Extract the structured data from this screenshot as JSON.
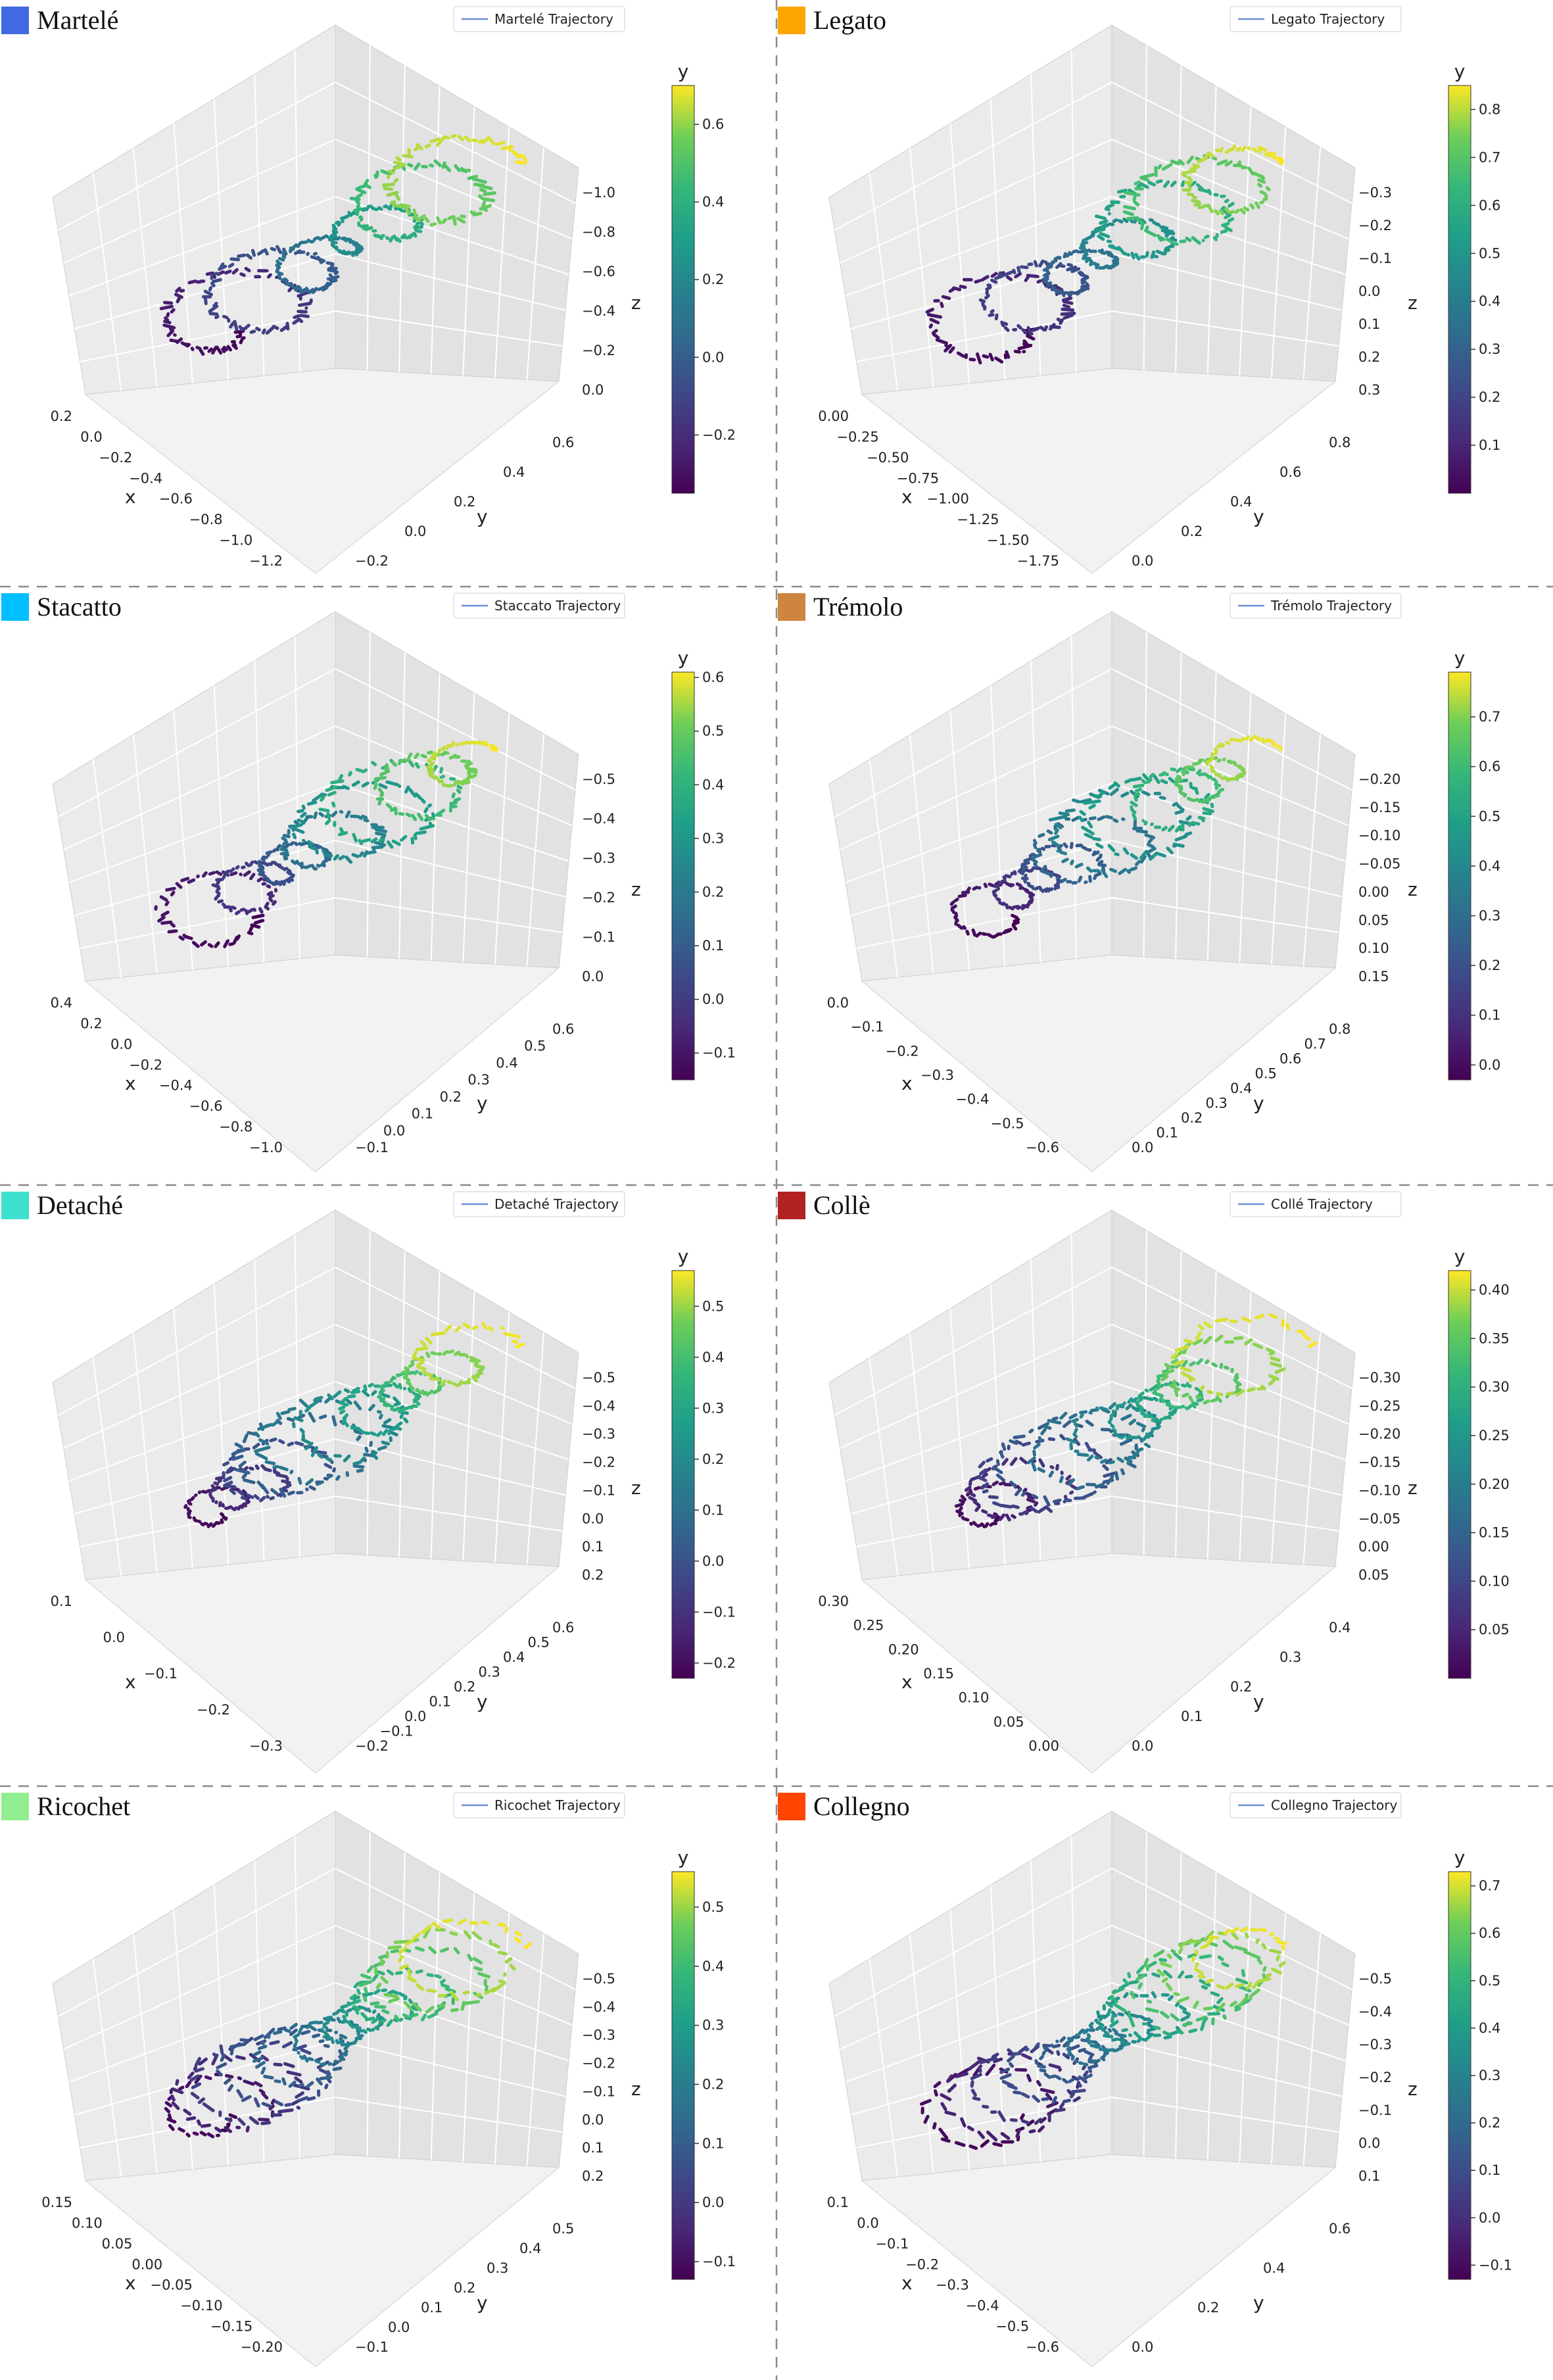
{
  "figure": {
    "panels": [
      {
        "key": "martele",
        "title": "Martelé",
        "badge_color": "#4169E1",
        "legend": "Martelé Trajectory"
      },
      {
        "key": "legato",
        "title": "Legato",
        "badge_color": "#FFA500",
        "legend": "Legato Trajectory"
      },
      {
        "key": "stacatto",
        "title": "Stacatto",
        "badge_color": "#00BFFF",
        "legend": "Staccato Trajectory"
      },
      {
        "key": "tremolo",
        "title": "Trémolo",
        "badge_color": "#CD853F",
        "legend": "Trémolo Trajectory"
      },
      {
        "key": "detache",
        "title": "Detaché",
        "badge_color": "#40E0D0",
        "legend": "Detaché Trajectory"
      },
      {
        "key": "colle",
        "title": "Collè",
        "badge_color": "#B22222",
        "legend": "Collé Trajectory"
      },
      {
        "key": "ricochet",
        "title": "Ricochet",
        "badge_color": "#90EE90",
        "legend": "Ricochet Trajectory"
      },
      {
        "key": "collegno",
        "title": "Collegno",
        "badge_color": "#FF4500",
        "legend": "Collegno Trajectory"
      }
    ]
  },
  "chart_data": [
    {
      "type": "line3d",
      "title": "Martelé",
      "series": [
        {
          "name": "Martelé Trajectory"
        }
      ],
      "xlabel": "x",
      "ylabel": "y",
      "zlabel": "z",
      "colorbar_label": "y",
      "colormap": "viridis",
      "x_ticks": [
        "0.2",
        "0.0",
        "−0.2",
        "−0.4",
        "−0.6",
        "−0.8",
        "−1.0",
        "−1.2"
      ],
      "y_ticks": [
        "−0.2",
        "0.0",
        "0.2",
        "0.4",
        "0.6"
      ],
      "z_ticks": [
        "−1.0",
        "−0.8",
        "−0.6",
        "−0.4",
        "−0.2",
        "0.0"
      ],
      "colorbar_ticks": [
        "0.6",
        "0.4",
        "0.2",
        "0.0",
        "−0.2"
      ],
      "colorbar_range": [
        -0.35,
        0.7
      ]
    },
    {
      "type": "line3d",
      "title": "Legato",
      "series": [
        {
          "name": "Legato Trajectory"
        }
      ],
      "xlabel": "x",
      "ylabel": "y",
      "zlabel": "z",
      "colorbar_label": "y",
      "colormap": "viridis",
      "x_ticks": [
        "0.00",
        "−0.25",
        "−0.50",
        "−0.75",
        "−1.00",
        "−1.25",
        "−1.50",
        "−1.75"
      ],
      "y_ticks": [
        "0.0",
        "0.2",
        "0.4",
        "0.6",
        "0.8"
      ],
      "z_ticks": [
        "−0.3",
        "−0.2",
        "−0.1",
        "0.0",
        "0.1",
        "0.2",
        "0.3"
      ],
      "colorbar_ticks": [
        "0.8",
        "0.7",
        "0.6",
        "0.5",
        "0.4",
        "0.3",
        "0.2",
        "0.1"
      ],
      "colorbar_range": [
        0.0,
        0.85
      ]
    },
    {
      "type": "line3d",
      "title": "Stacatto",
      "series": [
        {
          "name": "Staccato Trajectory"
        }
      ],
      "xlabel": "x",
      "ylabel": "y",
      "zlabel": "z",
      "colorbar_label": "y",
      "colormap": "viridis",
      "x_ticks": [
        "0.4",
        "0.2",
        "0.0",
        "−0.2",
        "−0.4",
        "−0.6",
        "−0.8",
        "−1.0"
      ],
      "y_ticks": [
        "−0.1",
        "0.0",
        "0.1",
        "0.2",
        "0.3",
        "0.4",
        "0.5",
        "0.6"
      ],
      "z_ticks": [
        "−0.5",
        "−0.4",
        "−0.3",
        "−0.2",
        "−0.1",
        "0.0"
      ],
      "colorbar_ticks": [
        "0.6",
        "0.5",
        "0.4",
        "0.3",
        "0.2",
        "0.1",
        "0.0",
        "−0.1"
      ],
      "colorbar_range": [
        -0.15,
        0.61
      ]
    },
    {
      "type": "line3d",
      "title": "Trémolo",
      "series": [
        {
          "name": "Trémolo Trajectory"
        }
      ],
      "xlabel": "x",
      "ylabel": "y",
      "zlabel": "z",
      "colorbar_label": "y",
      "colormap": "viridis",
      "x_ticks": [
        "0.0",
        "−0.1",
        "−0.2",
        "−0.3",
        "−0.4",
        "−0.5",
        "−0.6"
      ],
      "y_ticks": [
        "0.0",
        "0.1",
        "0.2",
        "0.3",
        "0.4",
        "0.5",
        "0.6",
        "0.7",
        "0.8"
      ],
      "z_ticks": [
        "−0.20",
        "−0.15",
        "−0.10",
        "−0.05",
        "0.00",
        "0.05",
        "0.10",
        "0.15"
      ],
      "colorbar_ticks": [
        "0.7",
        "0.6",
        "0.5",
        "0.4",
        "0.3",
        "0.2",
        "0.1",
        "0.0"
      ],
      "colorbar_range": [
        -0.03,
        0.79
      ]
    },
    {
      "type": "line3d",
      "title": "Detaché",
      "series": [
        {
          "name": "Detaché Trajectory"
        }
      ],
      "xlabel": "x",
      "ylabel": "y",
      "zlabel": "z",
      "colorbar_label": "y",
      "colormap": "viridis",
      "x_ticks": [
        "0.1",
        "0.0",
        "−0.1",
        "−0.2",
        "−0.3"
      ],
      "y_ticks": [
        "−0.2",
        "−0.1",
        "0.0",
        "0.1",
        "0.2",
        "0.3",
        "0.4",
        "0.5",
        "0.6"
      ],
      "z_ticks": [
        "−0.5",
        "−0.4",
        "−0.3",
        "−0.2",
        "−0.1",
        "0.0",
        "0.1",
        "0.2"
      ],
      "colorbar_ticks": [
        "0.5",
        "0.4",
        "0.3",
        "0.2",
        "0.1",
        "0.0",
        "−0.1",
        "−0.2"
      ],
      "colorbar_range": [
        -0.23,
        0.57
      ]
    },
    {
      "type": "line3d",
      "title": "Collè",
      "series": [
        {
          "name": "Collé Trajectory"
        }
      ],
      "xlabel": "x",
      "ylabel": "y",
      "zlabel": "z",
      "colorbar_label": "y",
      "colormap": "viridis",
      "x_ticks": [
        "0.30",
        "0.25",
        "0.20",
        "0.15",
        "0.10",
        "0.05",
        "0.00"
      ],
      "y_ticks": [
        "0.0",
        "0.1",
        "0.2",
        "0.3",
        "0.4"
      ],
      "z_ticks": [
        "−0.30",
        "−0.25",
        "−0.20",
        "−0.15",
        "−0.10",
        "−0.05",
        "0.00",
        "0.05"
      ],
      "colorbar_ticks": [
        "0.40",
        "0.35",
        "0.30",
        "0.25",
        "0.20",
        "0.15",
        "0.10",
        "0.05"
      ],
      "colorbar_range": [
        0.0,
        0.42
      ]
    },
    {
      "type": "line3d",
      "title": "Ricochet",
      "series": [
        {
          "name": "Ricochet Trajectory"
        }
      ],
      "xlabel": "x",
      "ylabel": "y",
      "zlabel": "z",
      "colorbar_label": "y",
      "colormap": "viridis",
      "x_ticks": [
        "0.15",
        "0.10",
        "0.05",
        "0.00",
        "−0.05",
        "−0.10",
        "−0.15",
        "−0.20"
      ],
      "y_ticks": [
        "−0.1",
        "0.0",
        "0.1",
        "0.2",
        "0.3",
        "0.4",
        "0.5"
      ],
      "z_ticks": [
        "−0.5",
        "−0.4",
        "−0.3",
        "−0.2",
        "−0.1",
        "0.0",
        "0.1",
        "0.2"
      ],
      "colorbar_ticks": [
        "0.5",
        "0.4",
        "0.3",
        "0.2",
        "0.1",
        "0.0",
        "−0.1"
      ],
      "colorbar_range": [
        -0.13,
        0.56
      ]
    },
    {
      "type": "line3d",
      "title": "Collegno",
      "series": [
        {
          "name": "Collegno Trajectory"
        }
      ],
      "xlabel": "x",
      "ylabel": "y",
      "zlabel": "z",
      "colorbar_label": "y",
      "colormap": "viridis",
      "x_ticks": [
        "0.1",
        "0.0",
        "−0.1",
        "−0.2",
        "−0.3",
        "−0.4",
        "−0.5",
        "−0.6"
      ],
      "y_ticks": [
        "0.0",
        "0.2",
        "0.4",
        "0.6"
      ],
      "z_ticks": [
        "−0.5",
        "−0.4",
        "−0.3",
        "−0.2",
        "−0.1",
        "0.0",
        "0.1"
      ],
      "colorbar_ticks": [
        "0.7",
        "0.6",
        "0.5",
        "0.4",
        "0.3",
        "0.2",
        "0.1",
        "0.0",
        "−0.1"
      ],
      "colorbar_range": [
        -0.13,
        0.73
      ]
    }
  ]
}
